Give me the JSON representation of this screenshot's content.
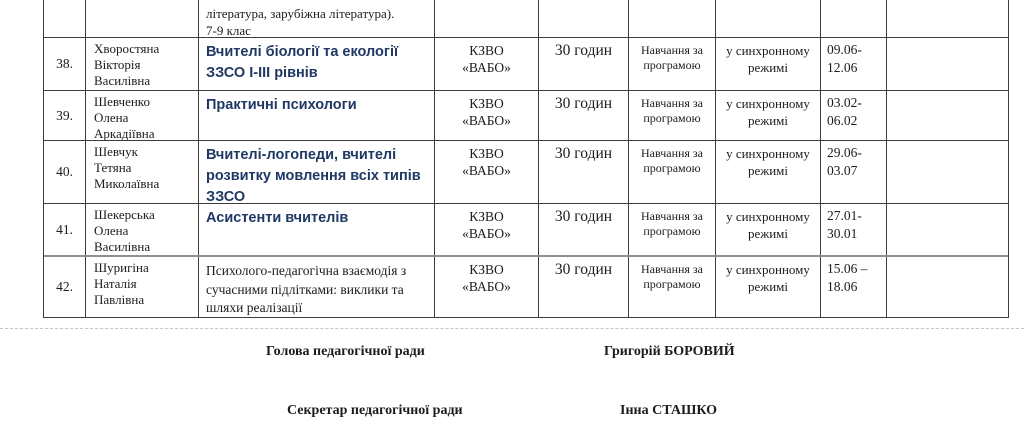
{
  "colors": {
    "accent_blue": "#1f3864",
    "table_border": "#3c3c3c",
    "split_line_gray": "#8f8f8f"
  },
  "continuation_row": {
    "course": "література, зарубіжна література).\n7-9 клас"
  },
  "table": {
    "rows": [
      {
        "num": "38.",
        "name": "Хворостяна\nВікторія\nВасилівна",
        "course": "Вчителі біології та екології\nЗЗСО І-ІІІ рівнів",
        "course_highlight": true,
        "provider": "КЗВО\n«ВАБО»",
        "hours": "30 годин",
        "format": "Навчання за\nпрограмою",
        "mode": "у синхронному\nрежимі",
        "dates": "09.06-\n12.06",
        "notes": ""
      },
      {
        "num": "39.",
        "name": "Шевченко\nОлена\nАркадіївна",
        "course": "Практичні психологи",
        "course_highlight": true,
        "provider": "КЗВО\n«ВАБО»",
        "hours": "30 годин",
        "format": "Навчання за\nпрограмою",
        "mode": "у синхронному\nрежимі",
        "dates": "03.02-\n06.02",
        "notes": ""
      },
      {
        "num": "40.",
        "name": "Шевчук\nТетяна\nМиколаївна",
        "course": "Вчителі-логопеди, вчителі\nрозвитку мовлення всіх типів\nЗЗСО",
        "course_highlight": true,
        "provider": "КЗВО\n«ВАБО»",
        "hours": "30 годин",
        "format": "Навчання за\nпрограмою",
        "mode": "у синхронному\nрежимі",
        "dates": "29.06-\n03.07",
        "notes": ""
      },
      {
        "num": "41.",
        "name": "Шекерська\nОлена\nВасилівна",
        "course": "Асистенти вчителів",
        "course_highlight": true,
        "provider": "КЗВО\n«ВАБО»",
        "hours": "30 годин",
        "format": "Навчання за\nпрограмою",
        "mode": "у синхронному\nрежимі",
        "dates": "27.01-\n30.01",
        "notes": ""
      },
      {
        "num": "42.",
        "name": "Шуригіна\nНаталія\nПавлівна",
        "course": "Психолого-педагогічна взаємодія з\nсучасними підлітками: виклики та\nшляхи реалізації",
        "course_highlight": false,
        "provider": "КЗВО\n«ВАБО»",
        "hours": "30 годин",
        "format": "Навчання за\nпрограмою",
        "mode": "у синхронному\nрежимі",
        "dates": "15.06 –\n18.06",
        "notes": ""
      }
    ]
  },
  "signatures": [
    {
      "role": "Голова педагогічної ради",
      "name": "Григорій БОРОВИЙ"
    },
    {
      "role": "Секретар педагогічної ради",
      "name": "Інна СТАШКО"
    }
  ]
}
